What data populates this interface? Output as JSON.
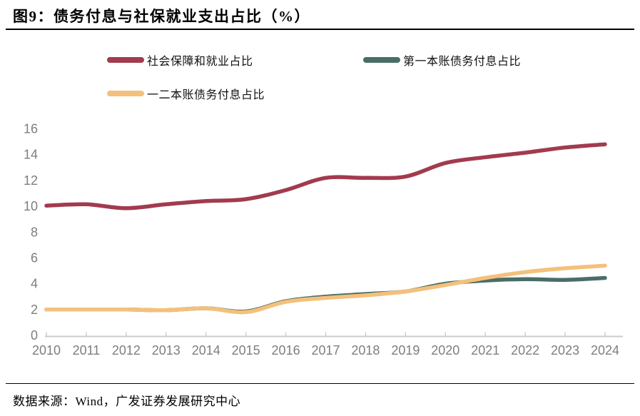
{
  "title": "图9：债务付息与社保就业支出占比（%）",
  "source": "数据来源：Wind，广发证券发展研究中心",
  "colors": {
    "axis_line": "#CBCBCB",
    "tick_label": "#7E7E7E",
    "rule": "#000000",
    "background": "#FFFFFF"
  },
  "chart_data": {
    "type": "line",
    "title": "债务付息与社保就业支出占比（%）",
    "xlabel": "",
    "ylabel": "",
    "categories": [
      "2010",
      "2011",
      "2012",
      "2013",
      "2014",
      "2015",
      "2016",
      "2017",
      "2018",
      "2019",
      "2020",
      "2021",
      "2022",
      "2023",
      "2024"
    ],
    "series": [
      {
        "name": "社会保障和就业占比",
        "color": "#A23B4E",
        "values": [
          10.05,
          10.15,
          9.85,
          10.15,
          10.4,
          10.55,
          11.25,
          12.2,
          12.2,
          12.3,
          13.35,
          13.8,
          14.15,
          14.55,
          14.8
        ]
      },
      {
        "name": "第一本账债务付息占比",
        "color": "#4A6E67",
        "values": [
          2.0,
          2.0,
          2.0,
          1.95,
          2.1,
          1.85,
          2.65,
          3.0,
          3.2,
          3.4,
          4.0,
          4.25,
          4.35,
          4.3,
          4.45
        ]
      },
      {
        "name": "一二本账债务付息占比",
        "color": "#F4C07B",
        "values": [
          2.0,
          2.0,
          2.0,
          1.95,
          2.1,
          1.8,
          2.6,
          2.9,
          3.1,
          3.4,
          3.9,
          4.45,
          4.9,
          5.2,
          5.4
        ]
      }
    ],
    "ylim": [
      0,
      16
    ],
    "yticks": [
      0,
      2,
      4,
      6,
      8,
      10,
      12,
      14,
      16
    ],
    "grid": false,
    "legend_position": "top",
    "line_style": "smooth"
  }
}
